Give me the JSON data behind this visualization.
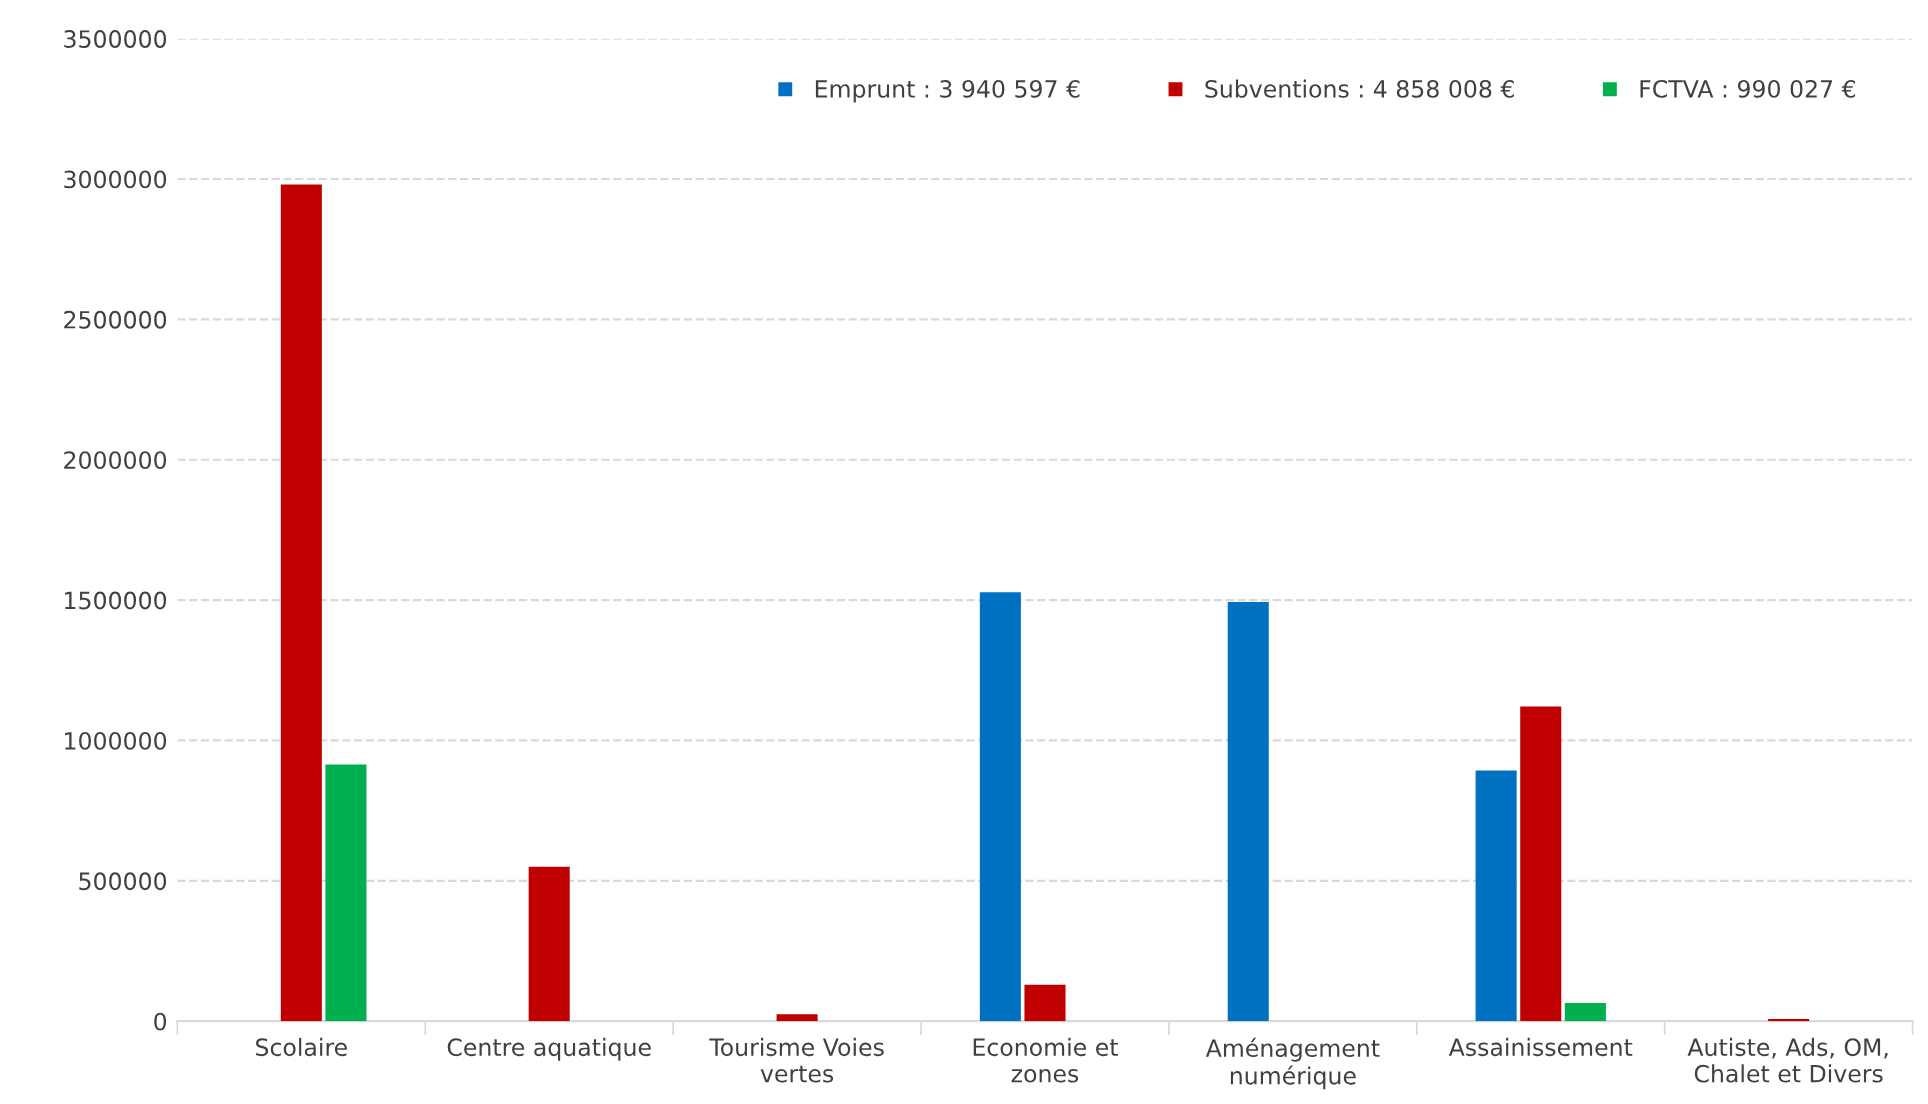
{
  "chart_data": {
    "type": "bar",
    "categories": [
      "Scolaire",
      "Centre aquatique",
      "Tourisme Voies\nvertes",
      "Economie et\nzones",
      "Aménagement\nnumérique",
      "Assainissement",
      "Autiste, Ads, OM,\nChalet et Divers"
    ],
    "series": [
      {
        "name": "Emprunt : 3 940 597 €",
        "color": "#0070c0",
        "values": [
          0,
          0,
          0,
          1528000,
          1493000,
          893000,
          0
        ]
      },
      {
        "name": "Subventions : 4 858 008 €",
        "color": "#c00000",
        "values": [
          2980000,
          550000,
          25000,
          130000,
          0,
          1121000,
          8000
        ]
      },
      {
        "name": "FCTVA : 990 027 €",
        "color": "#00b050",
        "values": [
          914000,
          0,
          0,
          0,
          0,
          65000,
          0
        ]
      }
    ],
    "ylim": [
      0,
      3500000
    ],
    "yticks": [
      0,
      500000,
      1000000,
      1500000,
      2000000,
      2500000,
      3000000,
      3500000
    ],
    "grid": "y",
    "legend": "top right"
  }
}
